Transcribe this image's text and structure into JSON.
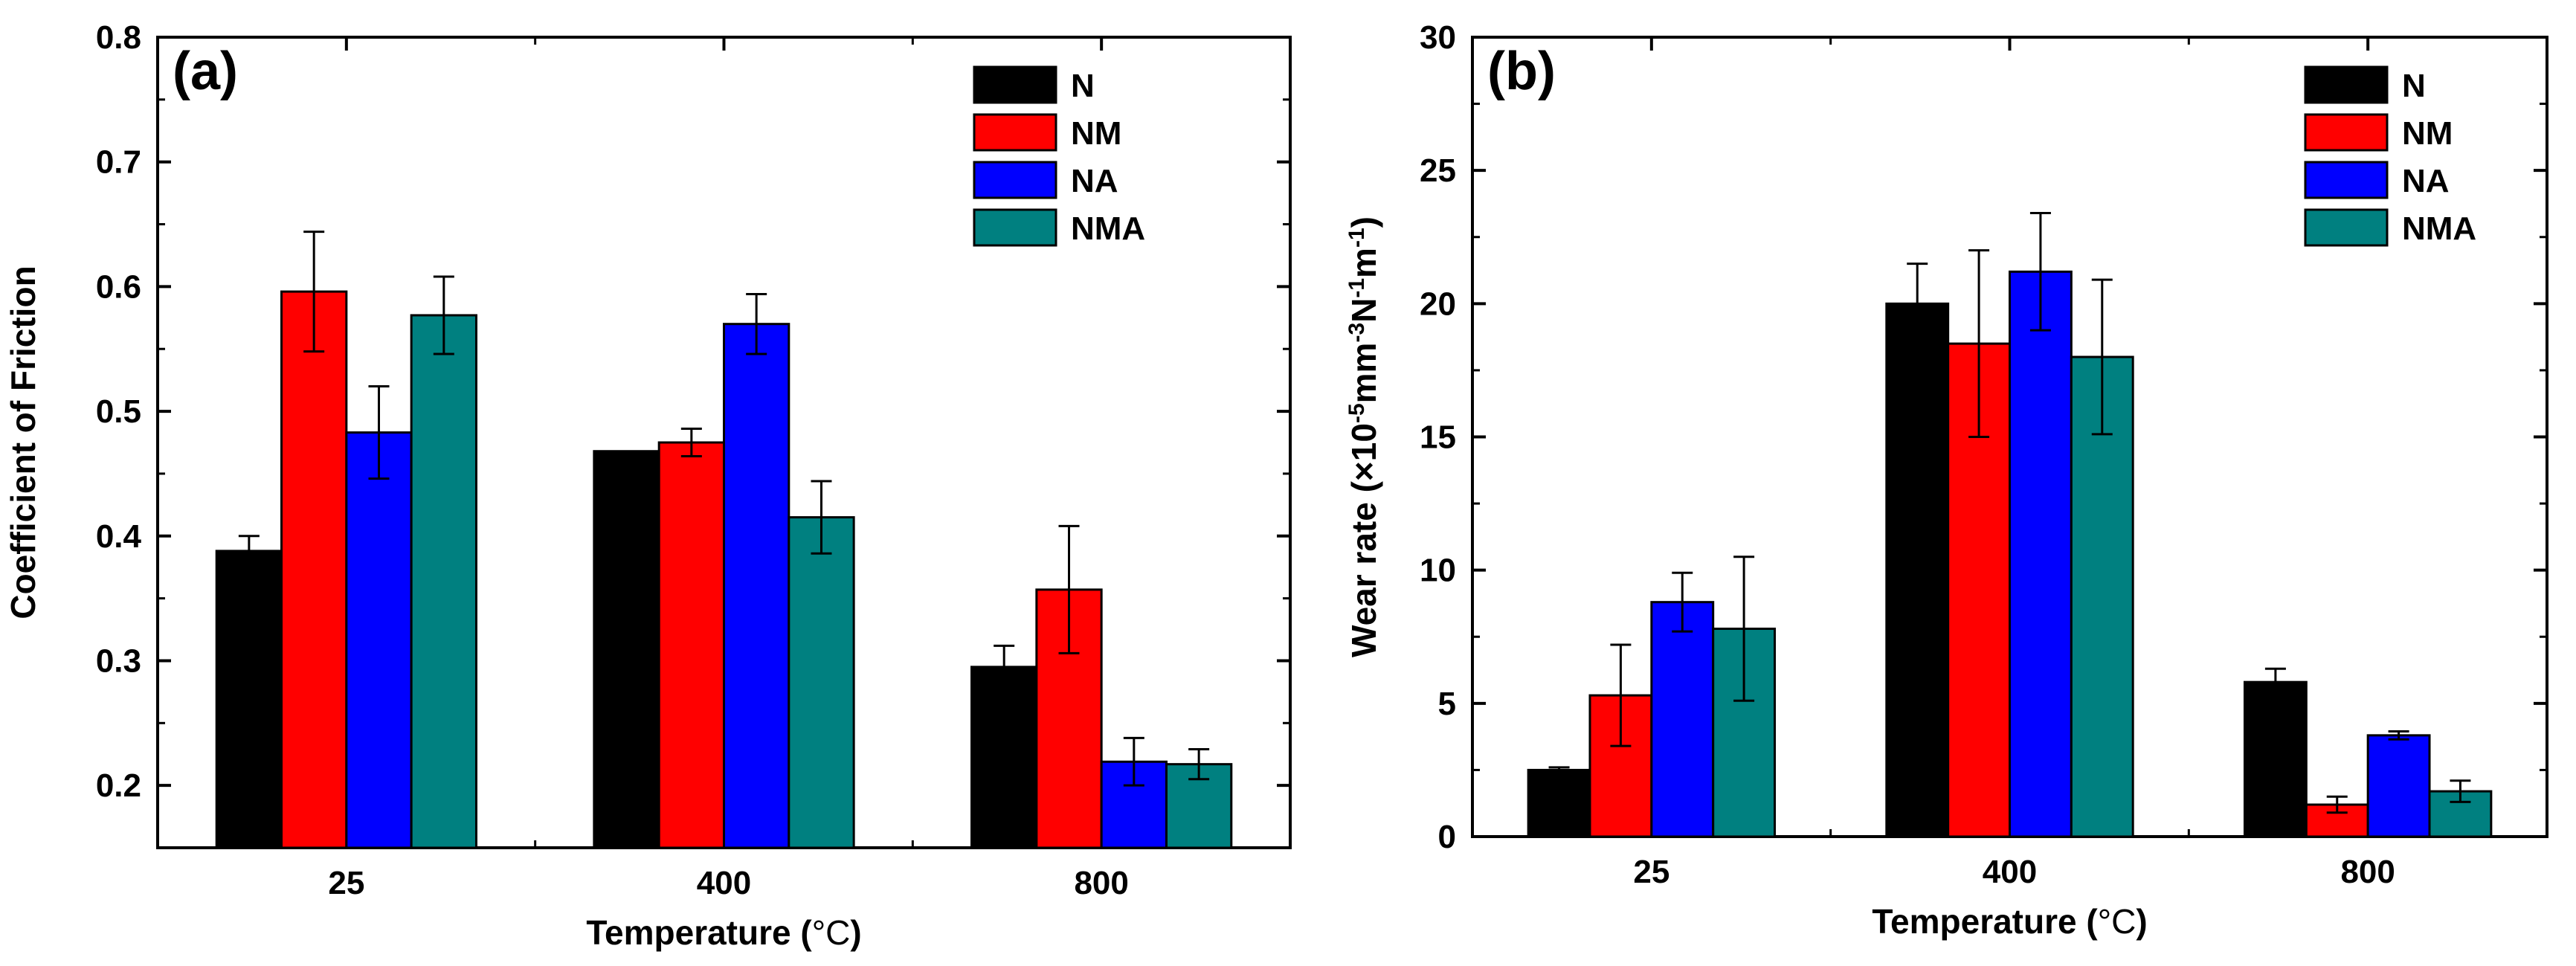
{
  "chart_data": [
    {
      "type": "bar",
      "panel_label": "(a)",
      "xlabel_prefix": "Temperature (",
      "xlabel_unit": "°C",
      "xlabel_suffix": ")",
      "ylabel": "Coefficient of Friction",
      "categories": [
        "25",
        "400",
        "800"
      ],
      "ylim": [
        0.15,
        0.8
      ],
      "yticks": [
        "0.2",
        "0.3",
        "0.4",
        "0.5",
        "0.6",
        "0.7",
        "0.8"
      ],
      "ytick_values": [
        0.2,
        0.3,
        0.4,
        0.5,
        0.6,
        0.7,
        0.8
      ],
      "legend_position": "top-right",
      "series": [
        {
          "name": "N",
          "color": "#000000",
          "values": [
            0.388,
            0.468,
            0.295
          ],
          "errors": [
            0.012,
            0,
            0.017
          ]
        },
        {
          "name": "NM",
          "color": "#ff0000",
          "values": [
            0.596,
            0.475,
            0.357
          ],
          "errors": [
            0.048,
            0.011,
            0.051
          ]
        },
        {
          "name": "NA",
          "color": "#0000ff",
          "values": [
            0.483,
            0.57,
            0.219
          ],
          "errors": [
            0.037,
            0.024,
            0.019
          ]
        },
        {
          "name": "NMA",
          "color": "#008080",
          "values": [
            0.577,
            0.415,
            0.217
          ],
          "errors": [
            0.031,
            0.029,
            0.012
          ]
        }
      ]
    },
    {
      "type": "bar",
      "panel_label": "(b)",
      "xlabel_prefix": "Temperature (",
      "xlabel_unit": "°C",
      "xlabel_suffix": ")",
      "ylabel": "Wear rate (×10-5mm-3N-1m-1)",
      "ylabel_parts": [
        {
          "text": "Wear rate (×10",
          "sup": false
        },
        {
          "text": "-5",
          "sup": true
        },
        {
          "text": "mm",
          "sup": false
        },
        {
          "text": "-3",
          "sup": true
        },
        {
          "text": "N",
          "sup": false
        },
        {
          "text": "-1",
          "sup": true
        },
        {
          "text": "m",
          "sup": false
        },
        {
          "text": "-1",
          "sup": true
        },
        {
          "text": ")",
          "sup": false
        }
      ],
      "categories": [
        "25",
        "400",
        "800"
      ],
      "ylim": [
        0,
        30
      ],
      "yticks": [
        "0",
        "5",
        "10",
        "15",
        "20",
        "25",
        "30"
      ],
      "ytick_values": [
        0,
        5,
        10,
        15,
        20,
        25,
        30
      ],
      "legend_position": "top-right",
      "series": [
        {
          "name": "N",
          "color": "#000000",
          "values": [
            2.5,
            20.0,
            5.8
          ],
          "errors": [
            0.1,
            1.5,
            0.5
          ]
        },
        {
          "name": "NM",
          "color": "#ff0000",
          "values": [
            5.3,
            18.5,
            1.2
          ],
          "errors": [
            1.9,
            3.5,
            0.3
          ]
        },
        {
          "name": "NA",
          "color": "#0000ff",
          "values": [
            8.8,
            21.2,
            3.8
          ],
          "errors": [
            1.1,
            2.2,
            0.15
          ]
        },
        {
          "name": "NMA",
          "color": "#008080",
          "values": [
            7.8,
            18.0,
            1.7
          ],
          "errors": [
            2.7,
            2.9,
            0.4
          ]
        }
      ]
    }
  ]
}
